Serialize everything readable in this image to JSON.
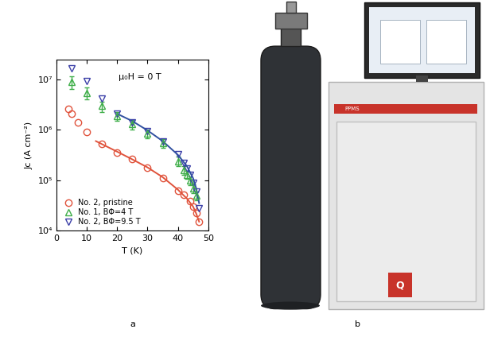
{
  "chart_data": {
    "type": "scatter",
    "xlabel": "T (K)",
    "ylabel": "Jc (A cm⁻²)",
    "annotation": "μ₀H = 0 T",
    "log": "y",
    "legend": "lower left",
    "xlim": [
      0,
      50
    ],
    "xticks": [
      0,
      10,
      20,
      30,
      40,
      50
    ],
    "ylim": [
      10000,
      25000000
    ],
    "yticks": [
      {
        "value": 10000,
        "label": "10⁴"
      },
      {
        "value": 100000,
        "label": "10⁵"
      },
      {
        "value": 1000000,
        "label": "10⁶"
      },
      {
        "value": 10000000,
        "label": "10⁷"
      }
    ],
    "series": [
      {
        "name": "No. 2, pristine",
        "type": "scatter",
        "color": "#e0533c",
        "marker": "circle",
        "x": [
          4,
          5,
          7,
          10,
          15,
          20,
          25,
          30,
          35,
          40,
          42,
          44,
          45,
          46,
          47
        ],
        "values": [
          2600000,
          2100000,
          1400000,
          900000,
          530000,
          360000,
          260000,
          180000,
          110000,
          62000,
          52000,
          38000,
          30000,
          22000,
          15000
        ]
      },
      {
        "name": "No. 1, BΦ=4 T",
        "type": "scatter",
        "color": "#3fae49",
        "marker": "triangle_up",
        "x": [
          5,
          10,
          15,
          20,
          25,
          30,
          35,
          40,
          42,
          43,
          44,
          45,
          46
        ],
        "values": [
          9000000,
          5500000,
          3000000,
          1900000,
          1300000,
          850000,
          550000,
          240000,
          160000,
          130000,
          100000,
          70000,
          50000
        ],
        "errors": [
          2500000,
          1500000,
          700000,
          400000,
          280000,
          180000,
          110000,
          50000,
          30000,
          25000,
          20000,
          14000,
          10000
        ]
      },
      {
        "name": "No. 2, BΦ=9.5 T",
        "type": "scatter",
        "color": "#3b3fa8",
        "marker": "triangle_down",
        "x": [
          5,
          10,
          15,
          20,
          25,
          30,
          35,
          40,
          42,
          43,
          44,
          45,
          46,
          47
        ],
        "values": [
          17000000,
          9500000,
          4200000,
          2100000,
          1400000,
          950000,
          600000,
          330000,
          220000,
          170000,
          130000,
          90000,
          60000,
          28000
        ]
      },
      {
        "type": "line",
        "color": "#e0533c",
        "line_style": "solid",
        "x": [
          13,
          20,
          25,
          30,
          35,
          40,
          43,
          45,
          46,
          47
        ],
        "values": [
          600000,
          370000,
          260000,
          180000,
          115000,
          65000,
          43000,
          30000,
          22000,
          15000
        ]
      },
      {
        "type": "line",
        "color": "#3050a0",
        "line_style": "solid",
        "x": [
          20,
          25,
          30,
          35,
          40,
          43,
          45,
          46,
          47
        ],
        "values": [
          2100000,
          1500000,
          980000,
          600000,
          320000,
          190000,
          110000,
          70000,
          35000
        ]
      }
    ]
  },
  "panel_labels": [
    "a",
    "b"
  ],
  "photo": {
    "texts": [
      "PPMS",
      "Q"
    ]
  }
}
